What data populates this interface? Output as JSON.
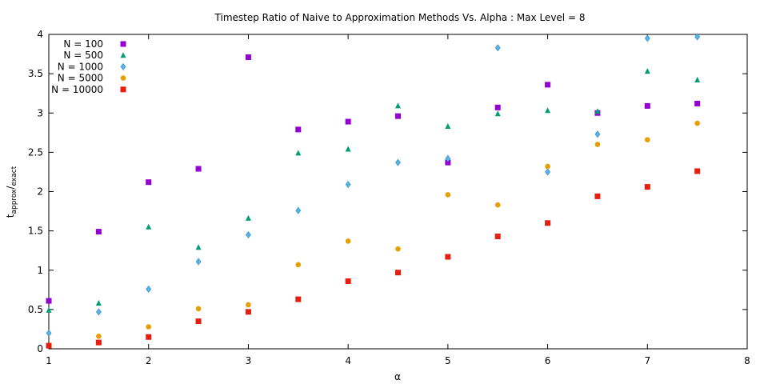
{
  "chart_data": {
    "type": "scatter",
    "title": "Timestep Ratio of Naive to Approximation Methods Vs. Alpha : Max Level = 8",
    "xlabel": "α",
    "ylabel_main": "t",
    "ylabel_sub": "approx",
    "ylabel_slash": "/",
    "ylabel_sub2": "exact",
    "xlim": [
      1,
      8
    ],
    "ylim": [
      0,
      4
    ],
    "xticks": [
      1,
      2,
      3,
      4,
      5,
      6,
      7,
      8
    ],
    "yticks": [
      0,
      0.5,
      1,
      1.5,
      2,
      2.5,
      3,
      3.5,
      4
    ],
    "legend_position": "top-left",
    "grid": false,
    "series": [
      {
        "name": "N = 100",
        "marker": "square",
        "color": "#9400d3",
        "points": [
          [
            1,
            0.61
          ],
          [
            1.5,
            1.49
          ],
          [
            2,
            2.12
          ],
          [
            2.5,
            2.29
          ],
          [
            3,
            3.71
          ],
          [
            3.5,
            2.79
          ],
          [
            4,
            2.89
          ],
          [
            4.5,
            2.96
          ],
          [
            5,
            2.37
          ],
          [
            5.5,
            3.07
          ],
          [
            6,
            3.36
          ],
          [
            6.5,
            3.0
          ],
          [
            7,
            3.09
          ],
          [
            7.5,
            3.12
          ]
        ]
      },
      {
        "name": "N = 500",
        "marker": "triangle",
        "color": "#009e73",
        "points": [
          [
            1,
            0.49
          ],
          [
            1.5,
            0.58
          ],
          [
            2,
            1.55
          ],
          [
            2.5,
            1.29
          ],
          [
            3,
            1.66
          ],
          [
            3.5,
            2.49
          ],
          [
            4,
            2.54
          ],
          [
            4.5,
            3.09
          ],
          [
            5,
            2.83
          ],
          [
            5.5,
            2.99
          ],
          [
            6,
            3.03
          ],
          [
            6.5,
            3.02
          ],
          [
            7,
            3.53
          ],
          [
            7.5,
            3.42
          ]
        ]
      },
      {
        "name": "N = 1000",
        "marker": "diamond",
        "color": "#56b4e9",
        "points": [
          [
            1,
            0.2
          ],
          [
            1.5,
            0.47
          ],
          [
            2,
            0.76
          ],
          [
            2.5,
            1.11
          ],
          [
            3,
            1.45
          ],
          [
            3.5,
            1.76
          ],
          [
            4,
            2.09
          ],
          [
            4.5,
            2.37
          ],
          [
            5,
            2.42
          ],
          [
            5.5,
            3.83
          ],
          [
            6,
            2.25
          ],
          [
            6.5,
            2.73
          ],
          [
            7,
            3.95
          ],
          [
            7.5,
            3.97
          ]
        ]
      },
      {
        "name": "N = 5000",
        "marker": "circle",
        "color": "#e69f00",
        "points": [
          [
            1,
            0.04
          ],
          [
            1.5,
            0.16
          ],
          [
            2,
            0.28
          ],
          [
            2.5,
            0.51
          ],
          [
            3,
            0.56
          ],
          [
            3.5,
            1.07
          ],
          [
            4,
            1.37
          ],
          [
            4.5,
            1.27
          ],
          [
            5,
            1.96
          ],
          [
            5.5,
            1.83
          ],
          [
            6,
            2.32
          ],
          [
            6.5,
            2.6
          ],
          [
            7,
            2.66
          ],
          [
            7.5,
            2.87
          ]
        ]
      },
      {
        "name": "N = 10000",
        "marker": "square",
        "color": "#e51e10",
        "points": [
          [
            1,
            0.04
          ],
          [
            1.5,
            0.08
          ],
          [
            2,
            0.15
          ],
          [
            2.5,
            0.35
          ],
          [
            3,
            0.47
          ],
          [
            3.5,
            0.63
          ],
          [
            4,
            0.86
          ],
          [
            4.5,
            0.97
          ],
          [
            5,
            1.17
          ],
          [
            5.5,
            1.43
          ],
          [
            6,
            1.6
          ],
          [
            6.5,
            1.94
          ],
          [
            7,
            2.06
          ],
          [
            7.5,
            2.26
          ]
        ]
      }
    ]
  }
}
